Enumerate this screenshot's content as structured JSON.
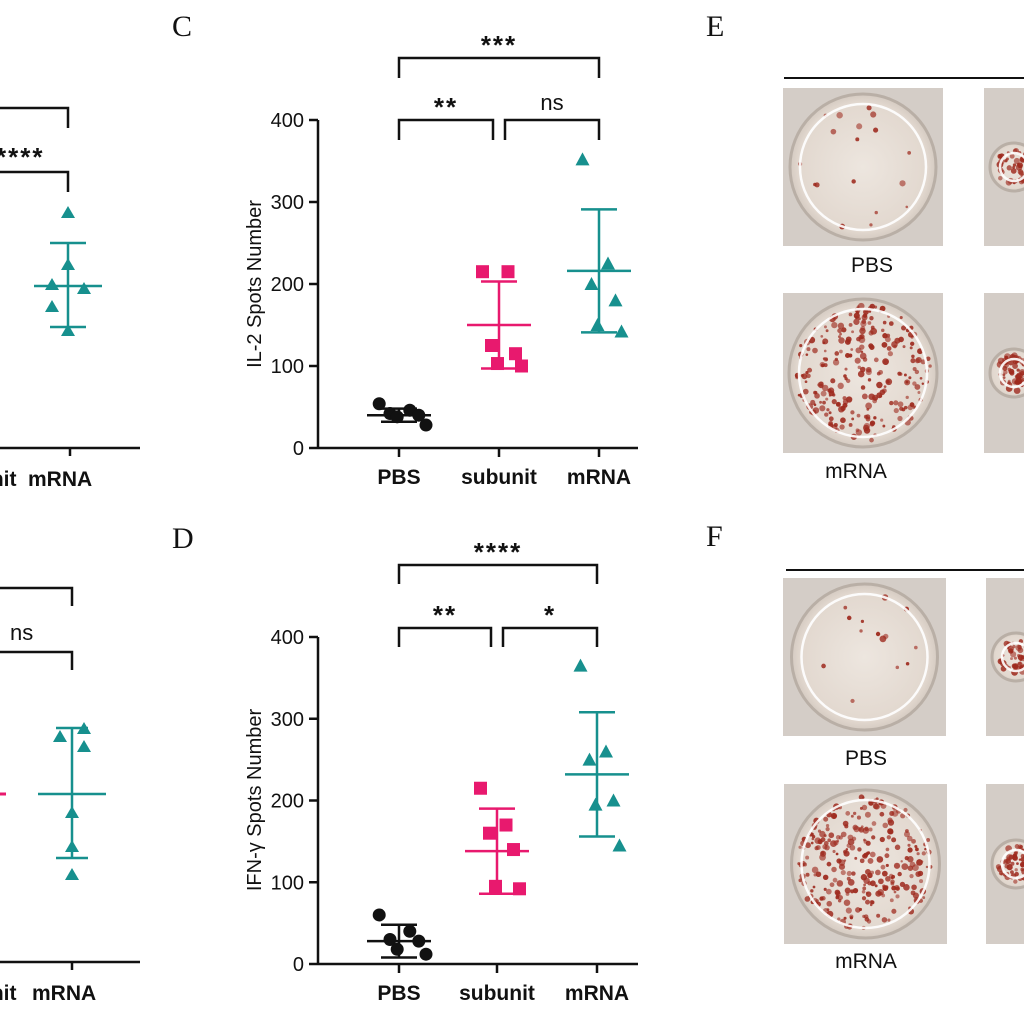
{
  "chart_data": [
    {
      "panel": "",
      "type": "scatter",
      "categories": [
        "unit",
        "mRNA"
      ],
      "series": [
        {
          "category": "mRNA",
          "points": [
            258,
            218,
            200,
            178,
            155,
            142
          ],
          "mean": 200,
          "sd": 52
        }
      ],
      "significance": [
        {
          "label": "****"
        }
      ]
    },
    {
      "panel": "C",
      "type": "scatter",
      "ylabel": "IL-2 Spots Number",
      "ylim": [
        0,
        400
      ],
      "yticks": [
        "0",
        "100",
        "200",
        "300",
        "400"
      ],
      "categories": [
        "PBS",
        "subunit",
        "mRNA"
      ],
      "series": [
        {
          "category": "PBS",
          "points": [
            54,
            46,
            42,
            40,
            38,
            28
          ],
          "mean": 40,
          "sd": 8,
          "color": "#111111",
          "marker": "circle"
        },
        {
          "category": "subunit",
          "points": [
            215,
            215,
            125,
            115,
            103,
            100
          ],
          "mean": 150,
          "sd": 53,
          "color": "#e8196e",
          "marker": "square"
        },
        {
          "category": "mRNA",
          "points": [
            352,
            225,
            200,
            180,
            150,
            142
          ],
          "mean": 216,
          "sd": 75,
          "color": "#17908e",
          "marker": "triangle"
        }
      ],
      "significance": [
        {
          "from": "PBS",
          "to": "subunit",
          "label": "**"
        },
        {
          "from": "subunit",
          "to": "mRNA",
          "label": "ns"
        },
        {
          "from": "PBS",
          "to": "mRNA",
          "label": "***"
        }
      ]
    },
    {
      "panel": "",
      "type": "scatter",
      "categories": [
        "unit",
        "mRNA"
      ],
      "series": [
        {
          "category": "mRNA",
          "points": [
            290,
            282,
            258,
            180,
            130,
            115
          ],
          "mean": 208,
          "sd": 80
        }
      ],
      "significance": [
        {
          "label": "ns"
        }
      ]
    },
    {
      "panel": "D",
      "type": "scatter",
      "ylabel": "IFN-γ Spots Number",
      "ylim": [
        0,
        400
      ],
      "yticks": [
        "0",
        "100",
        "200",
        "300",
        "400"
      ],
      "categories": [
        "PBS",
        "subunit",
        "mRNA"
      ],
      "series": [
        {
          "category": "PBS",
          "points": [
            60,
            40,
            30,
            28,
            18,
            12
          ],
          "mean": 28,
          "sd": 20,
          "color": "#111111",
          "marker": "circle"
        },
        {
          "category": "subunit",
          "points": [
            215,
            170,
            160,
            140,
            95,
            92
          ],
          "mean": 138,
          "sd": 52,
          "color": "#e8196e",
          "marker": "square"
        },
        {
          "category": "mRNA",
          "points": [
            365,
            260,
            250,
            200,
            195,
            145
          ],
          "mean": 232,
          "sd": 76,
          "color": "#17908e",
          "marker": "triangle"
        }
      ],
      "significance": [
        {
          "from": "PBS",
          "to": "subunit",
          "label": "**"
        },
        {
          "from": "subunit",
          "to": "mRNA",
          "label": "*"
        },
        {
          "from": "PBS",
          "to": "mRNA",
          "label": "****"
        }
      ]
    }
  ],
  "panels": {
    "E": {
      "letter": "E",
      "wells": [
        "PBS",
        "mRNA"
      ]
    },
    "F": {
      "letter": "F",
      "wells": [
        "PBS",
        "mRNA"
      ]
    }
  },
  "colors": {
    "pbs": "#111111",
    "subunit": "#e8196e",
    "mrna": "#17908e",
    "spot": "#9e2a1e"
  }
}
